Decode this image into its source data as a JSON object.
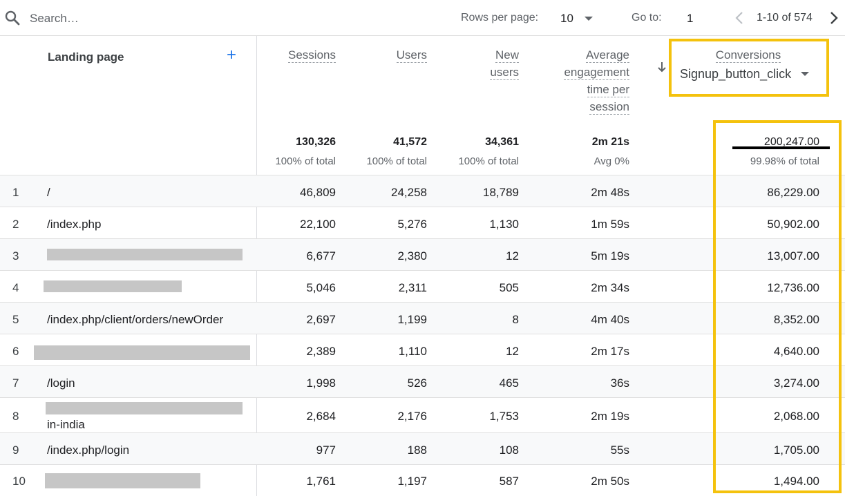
{
  "toolbar": {
    "search_placeholder": "Search…",
    "rows_per_page_label": "Rows per page:",
    "rows_per_page_value": "10",
    "goto_label": "Go to:",
    "goto_value": "1",
    "range_text": "1-10 of 574"
  },
  "columns": {
    "landing_page": "Landing page",
    "add_symbol": "+",
    "sessions": "Sessions",
    "users": "Users",
    "new_users_line1": "New",
    "new_users_line2": "users",
    "avg_line1": "Average",
    "avg_line2": "engagement",
    "avg_line3": "time per",
    "avg_line4": "session",
    "conversions": "Conversions",
    "conversions_event": "Signup_button_click"
  },
  "totals": {
    "sessions": "130,326",
    "sessions_pct": "100% of total",
    "users": "41,572",
    "users_pct": "100% of total",
    "new_users": "34,361",
    "new_users_pct": "100% of total",
    "avg_time": "2m 21s",
    "avg_time_pct": "Avg 0%",
    "conversions": "200,247.00",
    "conversions_pct": "99.98% of total"
  },
  "rows": [
    {
      "idx": "1",
      "page": "/",
      "sessions": "46,809",
      "users": "24,258",
      "new_users": "18,789",
      "avg": "2m 48s",
      "conv": "86,229.00"
    },
    {
      "idx": "2",
      "page": "/index.php",
      "sessions": "22,100",
      "users": "5,276",
      "new_users": "1,130",
      "avg": "1m 59s",
      "conv": "50,902.00"
    },
    {
      "idx": "3",
      "page": "",
      "sessions": "6,677",
      "users": "2,380",
      "new_users": "12",
      "avg": "5m 19s",
      "conv": "13,007.00"
    },
    {
      "idx": "4",
      "page": "",
      "sessions": "5,046",
      "users": "2,311",
      "new_users": "505",
      "avg": "2m 34s",
      "conv": "12,736.00"
    },
    {
      "idx": "5",
      "page": "/index.php/client/orders/newOrder",
      "sessions": "2,697",
      "users": "1,199",
      "new_users": "8",
      "avg": "4m 40s",
      "conv": "8,352.00"
    },
    {
      "idx": "6",
      "page": "",
      "sessions": "2,389",
      "users": "1,110",
      "new_users": "12",
      "avg": "2m 17s",
      "conv": "4,640.00"
    },
    {
      "idx": "7",
      "page": "/login",
      "sessions": "1,998",
      "users": "526",
      "new_users": "465",
      "avg": "36s",
      "conv": "3,274.00"
    },
    {
      "idx": "8",
      "page": "in-india",
      "sessions": "2,684",
      "users": "2,176",
      "new_users": "1,753",
      "avg": "2m 19s",
      "conv": "2,068.00"
    },
    {
      "idx": "9",
      "page": "/index.php/login",
      "sessions": "977",
      "users": "188",
      "new_users": "108",
      "avg": "55s",
      "conv": "1,705.00"
    },
    {
      "idx": "10",
      "page": "",
      "sessions": "1,761",
      "users": "1,197",
      "new_users": "587",
      "avg": "2m 50s",
      "conv": "1,494.00"
    }
  ],
  "colors": {
    "highlight": "#f4c20d",
    "accent_blue": "#1a73e8",
    "redaction": "#c6c6c6"
  }
}
